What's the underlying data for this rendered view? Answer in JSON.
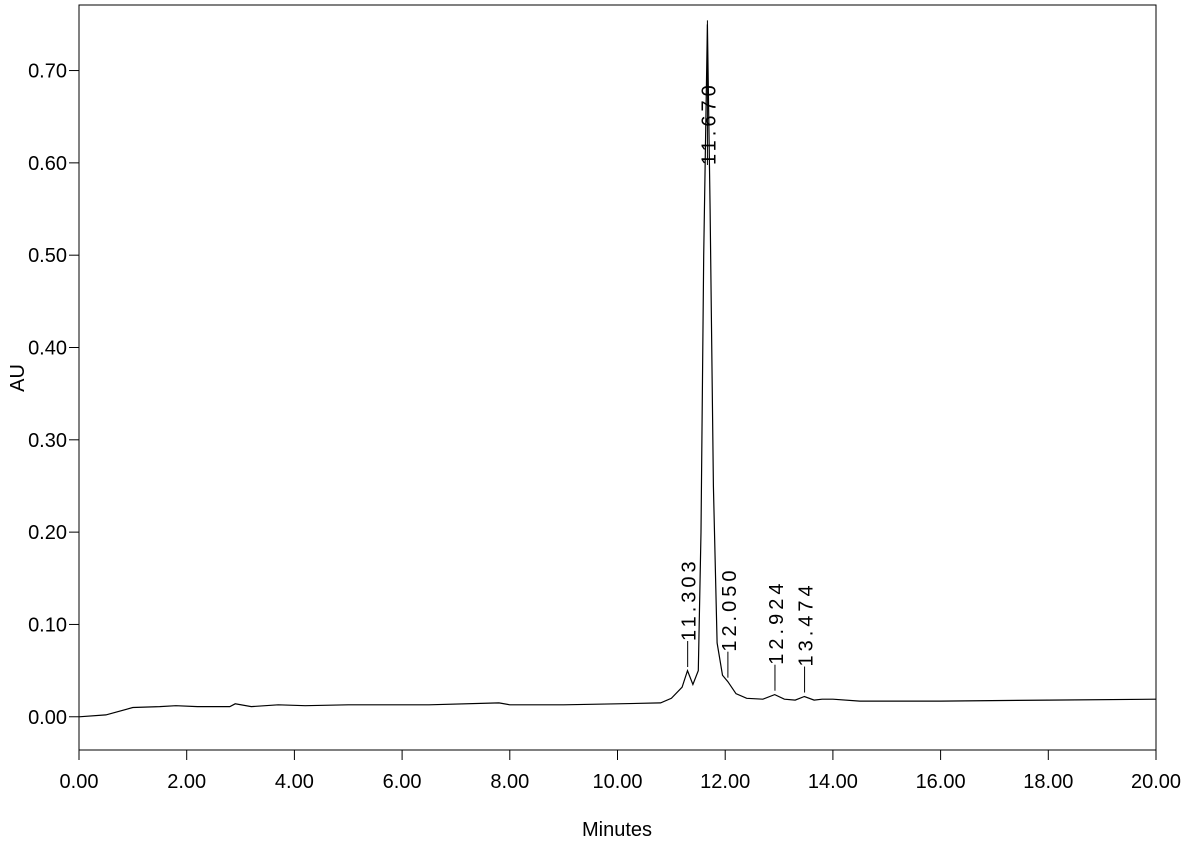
{
  "chart_data": {
    "type": "line",
    "xlabel": "Minutes",
    "ylabel": "AU",
    "color": "#000000",
    "x": [
      0,
      0.5,
      1.0,
      1.5,
      1.8,
      2.2,
      2.8,
      2.9,
      3.2,
      3.7,
      4.2,
      5.0,
      6.5,
      7.8,
      8.0,
      9.0,
      10.0,
      10.8,
      11.0,
      11.2,
      11.3,
      11.4,
      11.5,
      11.55,
      11.6,
      11.67,
      11.72,
      11.78,
      11.85,
      11.95,
      12.05,
      12.2,
      12.4,
      12.7,
      12.92,
      13.1,
      13.3,
      13.47,
      13.65,
      13.8,
      14.0,
      14.5,
      16.0,
      18.0,
      20.0
    ],
    "values": [
      0.0,
      0.002,
      0.01,
      0.011,
      0.012,
      0.011,
      0.011,
      0.014,
      0.011,
      0.013,
      0.012,
      0.013,
      0.013,
      0.015,
      0.013,
      0.013,
      0.014,
      0.015,
      0.02,
      0.032,
      0.05,
      0.035,
      0.05,
      0.2,
      0.5,
      0.75,
      0.55,
      0.25,
      0.08,
      0.045,
      0.038,
      0.025,
      0.02,
      0.019,
      0.024,
      0.019,
      0.018,
      0.022,
      0.018,
      0.019,
      0.019,
      0.017,
      0.017,
      0.018,
      0.019
    ],
    "peaks": [
      {
        "value": 11.303,
        "label": "11.303"
      },
      {
        "value": 11.67,
        "label": "11.670"
      },
      {
        "value": 12.05,
        "label": "12.050"
      },
      {
        "value": 12.924,
        "label": "12.924"
      },
      {
        "value": 13.474,
        "label": "13.474"
      }
    ],
    "xlim": [
      0,
      20
    ],
    "ylim": [
      -0.036,
      0.771
    ],
    "xticks": [
      {
        "value": 0,
        "label": "0.00"
      },
      {
        "value": 2,
        "label": "2.00"
      },
      {
        "value": 4,
        "label": "4.00"
      },
      {
        "value": 6,
        "label": "6.00"
      },
      {
        "value": 8,
        "label": "8.00"
      },
      {
        "value": 10,
        "label": "10.00"
      },
      {
        "value": 12,
        "label": "12.00"
      },
      {
        "value": 14,
        "label": "14.00"
      },
      {
        "value": 16,
        "label": "16.00"
      },
      {
        "value": 18,
        "label": "18.00"
      },
      {
        "value": 20,
        "label": "20.00"
      }
    ],
    "yticks": [
      {
        "value": 0,
        "label": "0.00"
      },
      {
        "value": 0.1,
        "label": "0.10"
      },
      {
        "value": 0.2,
        "label": "0.20"
      },
      {
        "value": 0.3,
        "label": "0.30"
      },
      {
        "value": 0.4,
        "label": "0.40"
      },
      {
        "value": 0.5,
        "label": "0.50"
      },
      {
        "value": 0.6,
        "label": "0.60"
      },
      {
        "value": 0.7,
        "label": "0.70"
      }
    ],
    "grid": false
  }
}
